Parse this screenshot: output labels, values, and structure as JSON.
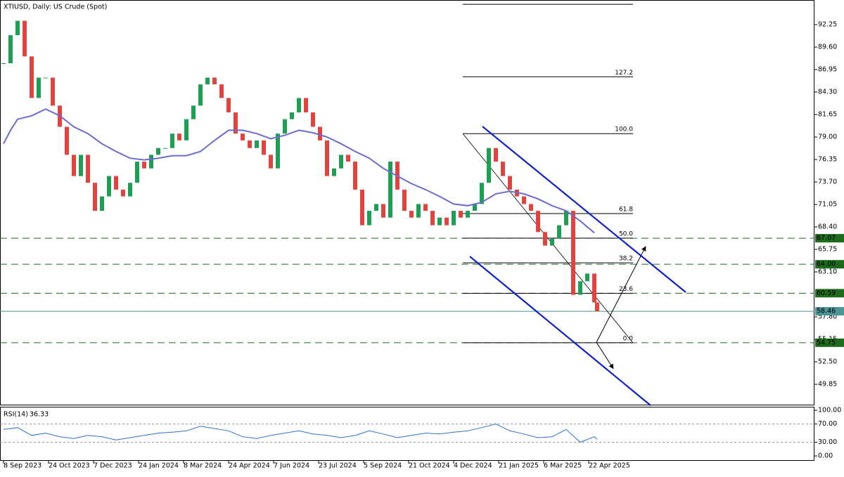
{
  "chart_data": {
    "type": "candlestick",
    "title": "XTIUSD, Daily:  US Crude (Spot)",
    "x": [
      0,
      5,
      10,
      15,
      20,
      25,
      30,
      35,
      40,
      45,
      50,
      55,
      60,
      65,
      70,
      75,
      80,
      85,
      90,
      95,
      100,
      105,
      110,
      115,
      120,
      125,
      130,
      135,
      140,
      145,
      150,
      155,
      160,
      165,
      170,
      175,
      180,
      185,
      190,
      195,
      200,
      205,
      210,
      215,
      220,
      225,
      230,
      235,
      240,
      245,
      250,
      255,
      260,
      265,
      270,
      275,
      280,
      285,
      290,
      295,
      300,
      305,
      310,
      315,
      320,
      325,
      330,
      335,
      340,
      345,
      350,
      355,
      360,
      365,
      370,
      375,
      380,
      385,
      390,
      395,
      400,
      405,
      410,
      415,
      420,
      422
    ],
    "values": [
      87.7,
      91.0,
      92.7,
      88.5,
      83.6,
      86.0,
      86.0,
      82.7,
      80.2,
      76.9,
      74.4,
      76.9,
      73.6,
      70.3,
      72.0,
      74.4,
      72.8,
      72.0,
      73.6,
      76.1,
      75.3,
      76.9,
      77.7,
      77.7,
      79.4,
      78.6,
      81.1,
      82.7,
      85.2,
      86.0,
      85.2,
      83.6,
      81.9,
      79.4,
      78.6,
      77.7,
      78.6,
      76.9,
      75.3,
      79.4,
      81.1,
      81.9,
      83.6,
      81.9,
      80.2,
      78.6,
      74.4,
      75.3,
      76.9,
      76.1,
      72.8,
      68.6,
      70.3,
      71.1,
      69.5,
      76.1,
      72.8,
      70.3,
      69.5,
      71.1,
      70.3,
      68.6,
      69.5,
      68.6,
      70.3,
      69.5,
      70.3,
      71.1,
      73.6,
      77.7,
      76.1,
      74.4,
      72.8,
      72.0,
      71.1,
      70.3,
      67.8,
      66.2,
      67.0,
      68.6,
      70.3,
      60.4,
      62.0,
      62.9,
      59.5,
      58.46
    ],
    "up_color": "#1f9d55",
    "down_color": "#e0443e",
    "current_color": "#4d9595",
    "xlim": [
      -2.5,
      576.5
    ],
    "ylim": [
      47.37,
      95.15
    ],
    "yticks": [
      {
        "value": 92.25,
        "label": "92.25"
      },
      {
        "value": 89.6,
        "label": "89.60"
      },
      {
        "value": 86.95,
        "label": "86.95"
      },
      {
        "value": 84.3,
        "label": "84.30"
      },
      {
        "value": 81.65,
        "label": "81.65"
      },
      {
        "value": 79,
        "label": "79.00"
      },
      {
        "value": 76.35,
        "label": "76.35"
      },
      {
        "value": 73.7,
        "label": "73.70"
      },
      {
        "value": 71.05,
        "label": "71.05"
      },
      {
        "value": 68.4,
        "label": "68.40"
      },
      {
        "value": 65.75,
        "label": "65.75"
      },
      {
        "value": 63.1,
        "label": "63.10"
      },
      {
        "value": 57.8,
        "label": "57.80"
      },
      {
        "value": 55.15,
        "label": "55.15"
      },
      {
        "value": 52.5,
        "label": "52.50"
      },
      {
        "value": 49.85,
        "label": "49.85"
      }
    ],
    "xticks": [
      {
        "value": 0,
        "label": "8 Sep 2023"
      },
      {
        "value": 32,
        "label": "24 Oct 2023"
      },
      {
        "value": 64,
        "label": "7 Dec 2023"
      },
      {
        "value": 96,
        "label": "24 Jan 2024"
      },
      {
        "value": 128,
        "label": "8 Mar 2024"
      },
      {
        "value": 160,
        "label": "24 Apr 2024"
      },
      {
        "value": 192,
        "label": "7 Jun 2024"
      },
      {
        "value": 224,
        "label": "23 Jul 2024"
      },
      {
        "value": 256,
        "label": "5 Sep 2024"
      },
      {
        "value": 288,
        "label": "21 Oct 2024"
      },
      {
        "value": 320,
        "label": "4 Dec 2024"
      },
      {
        "value": 352,
        "label": "21 Jan 2025"
      },
      {
        "value": 384,
        "label": "6 Mar 2025"
      },
      {
        "value": 416,
        "label": "22 Apr 2025"
      }
    ],
    "grid": false,
    "moving_average": {
      "color": "#6b6bd8",
      "x": [
        0,
        5,
        10,
        20,
        30,
        40,
        50,
        60,
        70,
        80,
        90,
        100,
        110,
        120,
        130,
        140,
        150,
        160,
        170,
        180,
        190,
        200,
        210,
        220,
        230,
        240,
        250,
        260,
        270,
        280,
        290,
        300,
        310,
        320,
        330,
        340,
        350,
        360,
        370,
        380,
        390,
        400,
        410,
        420
      ],
      "values": [
        78.2,
        79.8,
        81.1,
        81.5,
        82.3,
        81.5,
        80.2,
        79.4,
        78.2,
        77.3,
        76.5,
        76.3,
        76.5,
        76.8,
        76.8,
        77.3,
        78.6,
        79.8,
        79.8,
        79.4,
        78.8,
        79.2,
        79.8,
        79.5,
        79.0,
        78.2,
        77.3,
        76.5,
        75.3,
        74.4,
        73.5,
        72.8,
        72.0,
        71.1,
        70.9,
        71.3,
        72.3,
        72.6,
        72.3,
        71.7,
        70.9,
        70.3,
        69.1,
        67.7
      ]
    },
    "level_color": "#1e6b1e",
    "price_levels": [
      67.07,
      {
        "value": 64,
        "label": "64.00"
      },
      60.59,
      54.75
    ],
    "fibonacci": {
      "color": "#000000",
      "x": [
        326.5,
        447.5
      ],
      "levels": [
        {
          "label": null,
          "value": 94.64
        },
        {
          "label": "127.2",
          "value": 86.1
        },
        {
          "label": "100.0",
          "value": 79.4
        },
        {
          "label": "61.8",
          "value": 69.98
        },
        {
          "label": "50.0",
          "value": 67.08
        },
        {
          "label": "38.2",
          "value": 64.17
        },
        {
          "label": "23.6",
          "value": 60.57
        },
        {
          "label": "0.0",
          "value": 54.75
        }
      ]
    },
    "channel": {
      "color": "#0a1fd0",
      "lines": [
        {
          "x": [
            340.5,
            485
          ],
          "values": [
            80.24,
            60.7
          ]
        },
        {
          "x": [
            331.5,
            460
          ],
          "values": [
            64.92,
            47.36
          ]
        }
      ]
    },
    "trend_line": {
      "color": "#000000",
      "x": [
        326.5,
        447.5
      ],
      "values": [
        79.4,
        54.73
      ]
    },
    "arrows": [
      {
        "x": [
          421.5,
          456.5
        ],
        "values": [
          54.8,
          66.1
        ]
      },
      {
        "x": [
          421.5,
          433.5
        ],
        "values": [
          54.8,
          51.7
        ]
      }
    ],
    "rsi": {
      "label": "RSI(14)",
      "color": "#2f6fd6",
      "x": [
        0,
        10,
        20,
        30,
        40,
        50,
        60,
        70,
        80,
        90,
        100,
        110,
        120,
        130,
        140,
        150,
        160,
        170,
        180,
        190,
        200,
        210,
        220,
        230,
        240,
        250,
        260,
        270,
        280,
        290,
        300,
        310,
        320,
        330,
        340,
        350,
        360,
        370,
        380,
        390,
        400,
        410,
        420,
        422
      ],
      "values": [
        58,
        62,
        45,
        50,
        42,
        38,
        45,
        42,
        35,
        40,
        45,
        50,
        52,
        55,
        65,
        60,
        55,
        42,
        38,
        45,
        50,
        55,
        48,
        45,
        40,
        45,
        55,
        48,
        40,
        45,
        50,
        48,
        52,
        55,
        62,
        70,
        55,
        48,
        40,
        42,
        58,
        30,
        42,
        36.33
      ],
      "ylim": [
        -10.8,
        106.2
      ],
      "yticks": [
        {
          "value": 100,
          "label": "100.00"
        },
        {
          "value": 70,
          "label": "70.00"
        },
        {
          "value": 30,
          "label": "30.00"
        },
        {
          "value": 0,
          "label": "0.00"
        }
      ],
      "levels": [
        70,
        30
      ]
    }
  }
}
